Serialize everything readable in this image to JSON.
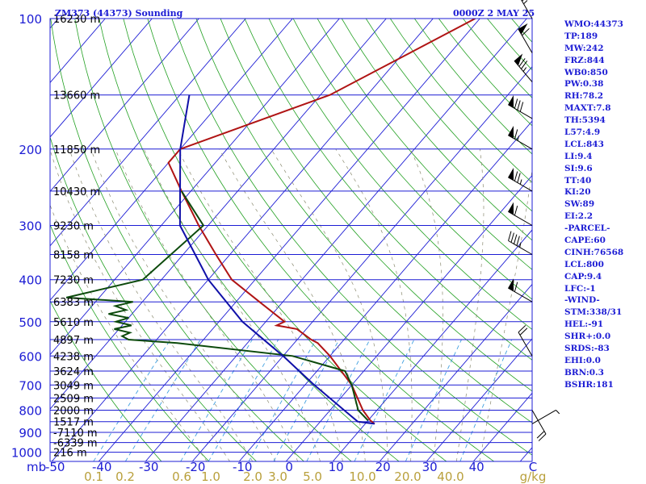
{
  "title": "ZM373 (44373) Sounding",
  "datetime": "0000Z  2 MAY 25",
  "stats": [
    "WMO:44373",
    "TP:189",
    "MW:242",
    "FRZ:844",
    "WB0:850",
    "PW:0.38",
    "RH:78.2",
    "MAXT:7.8",
    "TH:5394",
    "L57:4.9",
    "LCL:843",
    "LI:9.4",
    "SI:9.6",
    "TT:40",
    "KI:20",
    "SW:89",
    "EI:2.2",
    "-PARCEL-",
    "CAPE:60",
    "CINH:76568",
    "LCL:800",
    "CAP:9.4",
    "LFC:-1",
    "-WIND-",
    "STM:338/31",
    "HEL:-91",
    "SHR+:0.0",
    "SRDS:-83",
    "EHI:0.0",
    "BRN:0.3",
    "BSHR:181"
  ],
  "colors": {
    "isobar": "#1c1cd4",
    "isotherm": "#1c1cd4",
    "dry_adiabat": "#22a022",
    "moist_adiabat": "#8a8a70",
    "mixing_ratio": "#40a0e0",
    "temperature": "#b01414",
    "dewpoint": "#0c4a0c",
    "parcel": "#1010a8",
    "wind": "#000000"
  },
  "chart_data": {
    "type": "skew-t",
    "ylabel": "mb",
    "xlabel": "C",
    "mixing_ratio_unit": "g/kg",
    "pressure_ticks": [
      100,
      200,
      300,
      400,
      500,
      600,
      700,
      800,
      900,
      1000
    ],
    "temperature_ticks": [
      -50,
      -40,
      -30,
      -20,
      -10,
      0,
      10,
      20,
      30,
      40
    ],
    "temperature_tick_labels": [
      "-50",
      "-40",
      "-30",
      "-20",
      "-10",
      "0",
      "10",
      "20",
      "30",
      "40"
    ],
    "mixing_ratio_labels": [
      "0.1",
      "0.2",
      "0.6",
      "1.0",
      "2.0",
      "3.0",
      "5.0",
      "10.0",
      "20.0",
      "40.0"
    ],
    "height_levels": [
      {
        "p": 100,
        "label": "16230 m"
      },
      {
        "p": 150,
        "label": "13660 m"
      },
      {
        "p": 200,
        "label": "11850 m"
      },
      {
        "p": 250,
        "label": "10430 m"
      },
      {
        "p": 300,
        "label": "9230 m"
      },
      {
        "p": 350,
        "label": "8158 m"
      },
      {
        "p": 400,
        "label": "7230 m"
      },
      {
        "p": 450,
        "label": "6383 m"
      },
      {
        "p": 500,
        "label": "5610 m"
      },
      {
        "p": 550,
        "label": "4897 m"
      },
      {
        "p": 600,
        "label": "4238 m"
      },
      {
        "p": 650,
        "label": "3624 m"
      },
      {
        "p": 700,
        "label": "3049 m"
      },
      {
        "p": 750,
        "label": "2509 m"
      },
      {
        "p": 800,
        "label": "2000 m"
      },
      {
        "p": 850,
        "label": "1517 m"
      },
      {
        "p": 900,
        "label": "-7110 m"
      },
      {
        "p": 950,
        "label": "-6339 m"
      },
      {
        "p": 1000,
        "label": "216 m"
      }
    ],
    "series": [
      {
        "key": "temperature",
        "points": [
          [
            100,
            -41
          ],
          [
            150,
            -58
          ],
          [
            200,
            -80
          ],
          [
            215,
            -80
          ],
          [
            250,
            -72
          ],
          [
            300,
            -62
          ],
          [
            350,
            -53
          ],
          [
            400,
            -45
          ],
          [
            450,
            -35
          ],
          [
            500,
            -26
          ],
          [
            510,
            -27
          ],
          [
            520,
            -22
          ],
          [
            550,
            -17
          ],
          [
            560,
            -15
          ],
          [
            600,
            -10
          ],
          [
            700,
            0
          ],
          [
            800,
            7
          ],
          [
            845,
            10.5
          ],
          [
            860,
            12
          ]
        ]
      },
      {
        "key": "dewpoint",
        "points": [
          [
            250,
            -72
          ],
          [
            300,
            -61
          ],
          [
            400,
            -64
          ],
          [
            440,
            -77
          ],
          [
            450,
            -62
          ],
          [
            460,
            -65
          ],
          [
            470,
            -62
          ],
          [
            480,
            -65
          ],
          [
            490,
            -60
          ],
          [
            500,
            -62
          ],
          [
            510,
            -58
          ],
          [
            520,
            -61
          ],
          [
            530,
            -57
          ],
          [
            540,
            -58
          ],
          [
            550,
            -56
          ],
          [
            560,
            -45
          ],
          [
            600,
            -18
          ],
          [
            650,
            -4
          ],
          [
            700,
            0
          ],
          [
            800,
            6
          ],
          [
            845,
            10
          ]
        ]
      },
      {
        "key": "parcel",
        "points": [
          [
            150,
            -88
          ],
          [
            200,
            -80
          ],
          [
            300,
            -66
          ],
          [
            400,
            -50
          ],
          [
            500,
            -35
          ],
          [
            600,
            -20
          ],
          [
            700,
            -8
          ],
          [
            800,
            3
          ],
          [
            850,
            8
          ],
          [
            860,
            12
          ]
        ]
      }
    ],
    "wind_barbs": [
      {
        "p": 100,
        "dir": 330,
        "kt": 65
      },
      {
        "p": 120,
        "dir": 330,
        "kt": 60
      },
      {
        "p": 140,
        "dir": 320,
        "kt": 75
      },
      {
        "p": 170,
        "dir": 300,
        "kt": 80
      },
      {
        "p": 200,
        "dir": 300,
        "kt": 65
      },
      {
        "p": 250,
        "dir": 300,
        "kt": 75
      },
      {
        "p": 300,
        "dir": 300,
        "kt": 60
      },
      {
        "p": 350,
        "dir": 300,
        "kt": 45
      },
      {
        "p": 450,
        "dir": 300,
        "kt": 60
      },
      {
        "p": 600,
        "dir": 330,
        "kt": 20
      },
      {
        "p": 800,
        "dir": 150,
        "kt": 20
      },
      {
        "p": 860,
        "dir": 60,
        "kt": 5
      }
    ]
  }
}
